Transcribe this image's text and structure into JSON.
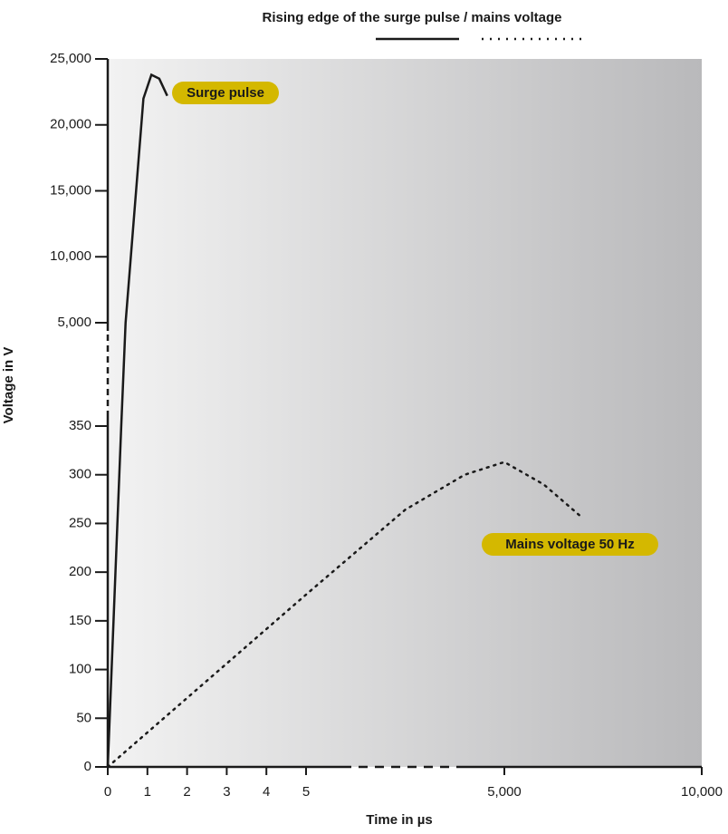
{
  "chart_data": {
    "type": "line",
    "title": "Rising edge of the surge pulse / mains voltage",
    "x_label": "Time in µs",
    "y_label": "Voltage in V",
    "xlim": [
      0,
      10000
    ],
    "ylim": [
      0,
      25000
    ],
    "x_segments": [
      [
        0,
        5
      ],
      [
        5000,
        10000
      ]
    ],
    "y_segments": [
      [
        0,
        350
      ],
      [
        5000,
        25000
      ]
    ],
    "xticks": [
      0,
      1,
      2,
      3,
      4,
      5,
      {
        "value": 5000,
        "label": "5,000"
      },
      {
        "value": 10000,
        "label": "10,000"
      }
    ],
    "yticks": [
      0,
      50,
      100,
      150,
      200,
      250,
      300,
      350,
      {
        "value": 5000,
        "label": "5,000"
      },
      {
        "value": 10000,
        "label": "10,000"
      },
      {
        "value": 15000,
        "label": "15,000"
      },
      {
        "value": 20000,
        "label": "20,000"
      },
      {
        "value": 25000,
        "label": "25,000"
      }
    ],
    "annotation_color": "#d4b800",
    "series": [
      {
        "name": "Surge pulse",
        "color": "#1a1a1a",
        "style": "solid",
        "x": [
          0,
          0.34,
          0.45,
          0.9,
          1.1,
          1.3,
          1.5
        ],
        "values": [
          0,
          350,
          5000,
          22000,
          23800,
          23500,
          22200
        ]
      },
      {
        "name": "Mains voltage 50 Hz",
        "color": "#1a1a1a",
        "style": "dotted",
        "x": [
          0,
          5,
          2500,
          4000,
          5000,
          6000,
          7000
        ],
        "values": [
          0,
          177,
          264,
          300,
          313,
          290,
          255
        ]
      }
    ]
  }
}
